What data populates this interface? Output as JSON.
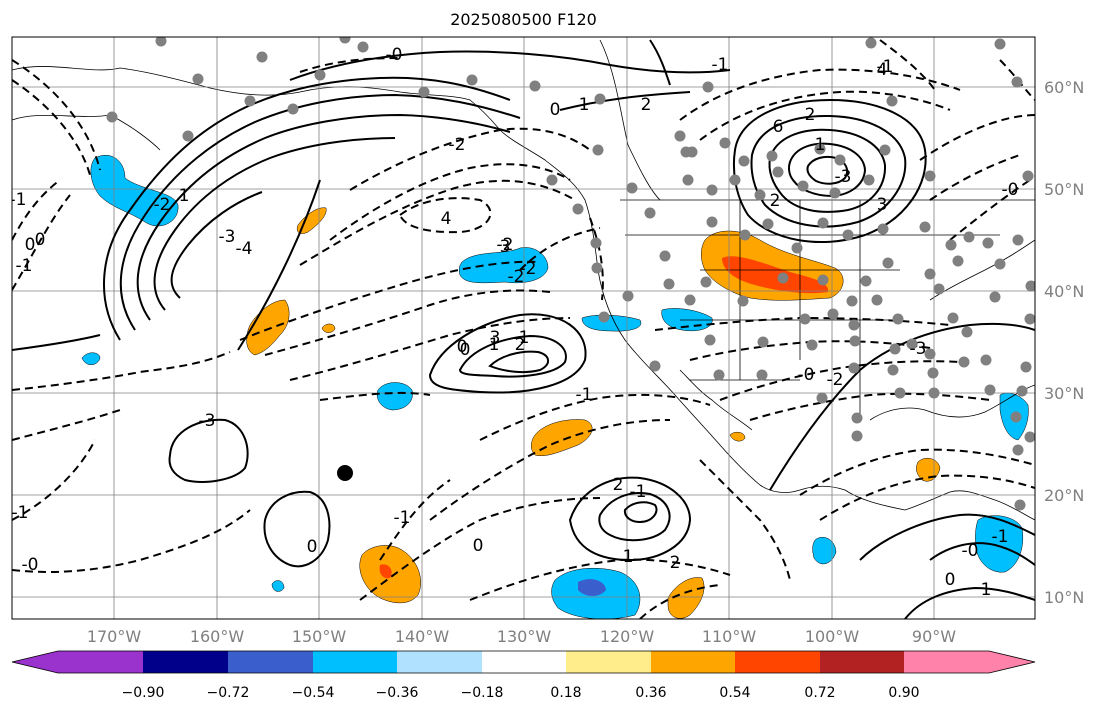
{
  "title": "2025080500 F120",
  "map": {
    "projection": "lat-lon",
    "lon_labels": [
      "170°W",
      "160°W",
      "150°W",
      "140°W",
      "130°W",
      "120°W",
      "110°W",
      "100°W",
      "90°W"
    ],
    "lat_labels": [
      "60°N",
      "50°N",
      "40°N",
      "30°N",
      "20°N",
      "10°N"
    ],
    "positive_contour_style": "solid",
    "negative_contour_style": "dashed",
    "contour_labels": [
      "-0",
      "1",
      "2",
      "0",
      "-1",
      "2",
      "1",
      "4",
      "-3",
      "6",
      "2",
      "3",
      "-2",
      "0",
      "4",
      "-2",
      "3",
      "-2",
      "-1",
      "3",
      "1",
      "-4",
      "-3",
      "-2",
      "-2",
      "0",
      "1",
      "2",
      "-0",
      "-1",
      "-3",
      "0",
      "-1",
      "2",
      "-1",
      "0",
      "1",
      "2",
      "-0",
      "-1",
      "0",
      "1",
      "-1",
      "-0",
      "-2",
      "-3",
      "-1",
      "0",
      "-1",
      "0",
      "-0",
      "-1"
    ],
    "station_marker_color": "#808080",
    "point_marker_color": "#000000"
  },
  "colorbar": {
    "tick_labels": [
      "−0.90",
      "−0.72",
      "−0.54",
      "−0.36",
      "−0.18",
      "0.18",
      "0.36",
      "0.54",
      "0.72",
      "0.90"
    ],
    "colors": [
      "#9a32cd",
      "#00008b",
      "#3a5fcd",
      "#00bfff",
      "#b0e2ff",
      "#ffffff",
      "#ffec8b",
      "#ffa500",
      "#ff4500",
      "#b22222",
      "#ff82ab"
    ],
    "extend": "both"
  }
}
